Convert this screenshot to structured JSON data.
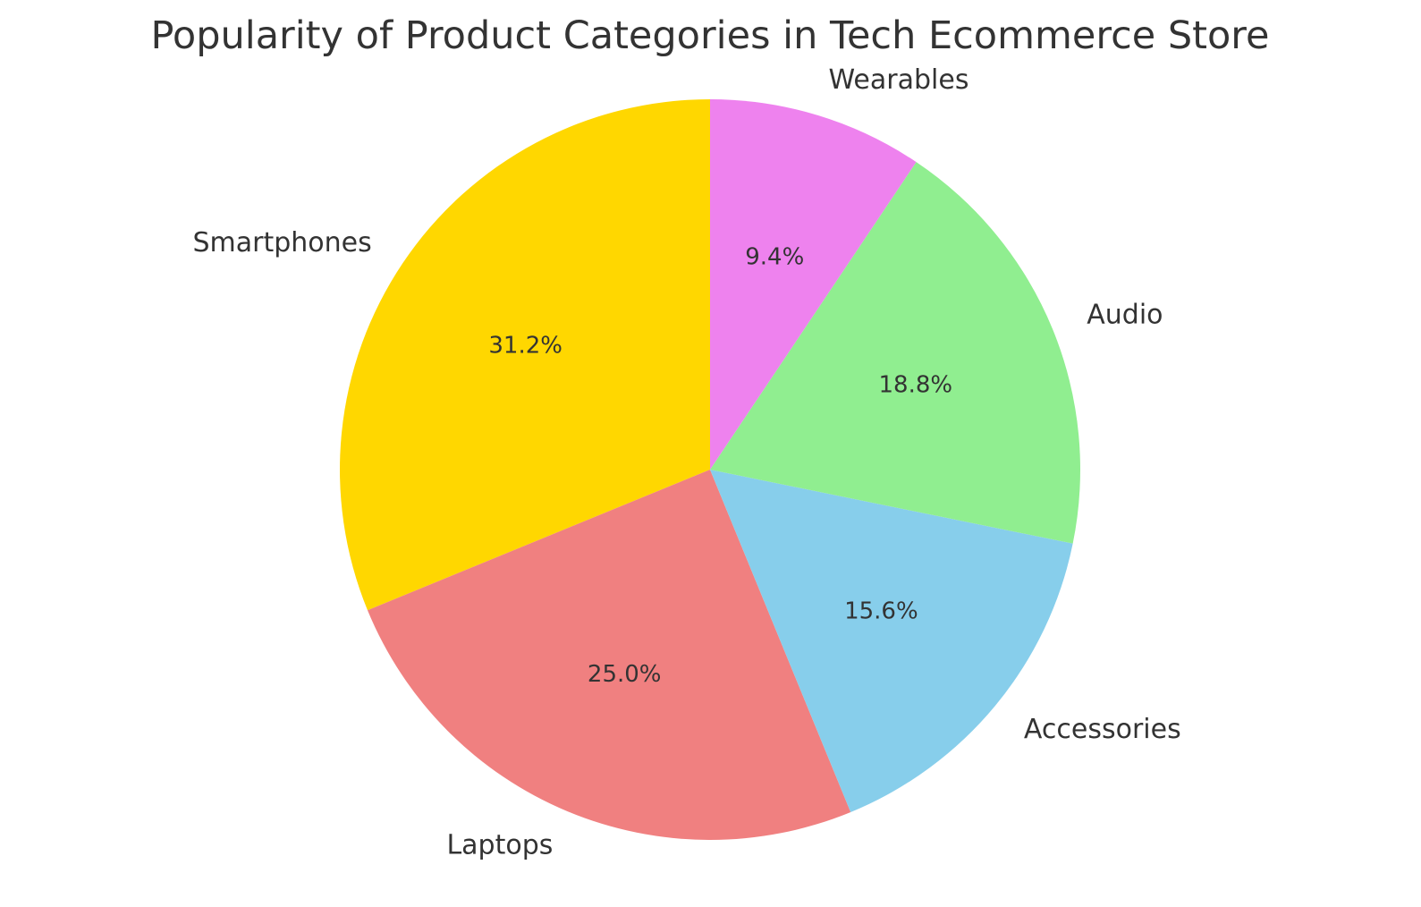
{
  "chart_data": {
    "type": "pie",
    "title": "Popularity of Product Categories in Tech Ecommerce Store",
    "start_angle_deg": 90,
    "direction": "counterclockwise",
    "slices": [
      {
        "label": "Smartphones",
        "value": 31.2,
        "pct_label": "31.2%",
        "color": "#FFD700"
      },
      {
        "label": "Laptops",
        "value": 25.0,
        "pct_label": "25.0%",
        "color": "#F08080"
      },
      {
        "label": "Accessories",
        "value": 15.6,
        "pct_label": "15.6%",
        "color": "#87CEEB"
      },
      {
        "label": "Audio",
        "value": 18.8,
        "pct_label": "18.8%",
        "color": "#90EE90"
      },
      {
        "label": "Wearables",
        "value": 9.4,
        "pct_label": "9.4%",
        "color": "#EE82EE"
      }
    ]
  }
}
